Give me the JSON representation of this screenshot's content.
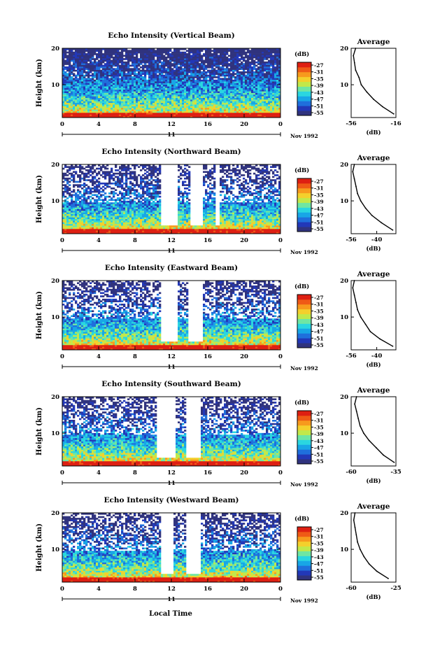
{
  "footer": {
    "xaxis_label": "Local Time"
  },
  "colorbar": {
    "unit_label": "(dB)",
    "tick_labels": [
      "-27",
      "-31",
      "-35",
      "-39",
      "-43",
      "-47",
      "-51",
      "-55"
    ],
    "colors": [
      "#30337e",
      "#2238b8",
      "#1f6fdc",
      "#18a6e6",
      "#2ad6e0",
      "#6fe6a3",
      "#c2e84a",
      "#f4d02c",
      "#f79a1d",
      "#ef5a16",
      "#de1f12"
    ]
  },
  "chart_data": [
    {
      "type": "heatmap",
      "title": "Echo Intensity (Vertical Beam)",
      "ylabel": "Height (km)",
      "ylim": [
        1,
        20
      ],
      "xlim": [
        0,
        24
      ],
      "x_ticks": [
        "0",
        "4",
        "8",
        "12",
        "16",
        "20",
        "0"
      ],
      "y_ticks": [
        "10",
        "20"
      ],
      "date_marker": "11",
      "date_label": "Nov 1992",
      "value_range_db": [
        -55,
        -27
      ],
      "gaps_hours": [],
      "profile": {
        "title": "Average",
        "xlabel": "(dB)",
        "x_ticks": [
          "-56",
          "-16"
        ],
        "xlim": [
          -56,
          -16
        ],
        "y_ticks": [
          "10",
          "20"
        ],
        "ylim": [
          1,
          20
        ],
        "heights_km": [
          2,
          4,
          6,
          8,
          10,
          12,
          14,
          16,
          18,
          20
        ],
        "values_db": [
          -18,
          -28,
          -36,
          -42,
          -47,
          -49,
          -52,
          -53,
          -54,
          -52
        ]
      }
    },
    {
      "type": "heatmap",
      "title": "Echo Intensity (Northward Beam)",
      "ylabel": "Height (km)",
      "ylim": [
        1,
        20
      ],
      "xlim": [
        0,
        24
      ],
      "x_ticks": [
        "0",
        "4",
        "8",
        "12",
        "16",
        "20",
        "0"
      ],
      "y_ticks": [
        "10",
        "20"
      ],
      "date_marker": "11",
      "date_label": "Nov 1992",
      "value_range_db": [
        -55,
        -27
      ],
      "gaps_hours": [
        [
          10.8,
          12.8
        ],
        [
          14.0,
          15.4
        ],
        [
          16.8,
          17.2
        ]
      ],
      "profile": {
        "title": "Average",
        "xlabel": "(dB)",
        "x_ticks": [
          "-56",
          "-40"
        ],
        "xlim": [
          -56,
          -28
        ],
        "y_ticks": [
          "10",
          "20"
        ],
        "ylim": [
          1,
          20
        ],
        "heights_km": [
          2,
          4,
          6,
          8,
          10,
          12,
          14,
          16,
          18,
          20
        ],
        "values_db": [
          -30,
          -37,
          -43,
          -47,
          -50,
          -52,
          -53,
          -54,
          -55,
          -54
        ]
      }
    },
    {
      "type": "heatmap",
      "title": "Echo Intensity (Eastward Beam)",
      "ylabel": "Height (km)",
      "ylim": [
        1,
        20
      ],
      "xlim": [
        0,
        24
      ],
      "x_ticks": [
        "0",
        "4",
        "8",
        "12",
        "16",
        "20",
        "0"
      ],
      "y_ticks": [
        "10",
        "20"
      ],
      "date_marker": "11",
      "date_label": "Nov 1992",
      "value_range_db": [
        -55,
        -27
      ],
      "gaps_hours": [
        [
          10.8,
          12.6
        ],
        [
          13.8,
          15.4
        ]
      ],
      "profile": {
        "title": "Average",
        "xlabel": "(dB)",
        "x_ticks": [
          "-56",
          "-40"
        ],
        "xlim": [
          -56,
          -28
        ],
        "y_ticks": [
          "10",
          "20"
        ],
        "ylim": [
          1,
          20
        ],
        "heights_km": [
          2,
          4,
          6,
          8,
          10,
          12,
          14,
          16,
          18,
          20
        ],
        "values_db": [
          -30,
          -38,
          -44,
          -47,
          -50,
          -52,
          -53,
          -54,
          -55,
          -54
        ]
      }
    },
    {
      "type": "heatmap",
      "title": "Echo Intensity (Southward Beam)",
      "ylabel": "Height (km)",
      "ylim": [
        1,
        20
      ],
      "xlim": [
        0,
        24
      ],
      "x_ticks": [
        "0",
        "4",
        "8",
        "12",
        "16",
        "20",
        "0"
      ],
      "y_ticks": [
        "10",
        "20"
      ],
      "date_marker": "11",
      "date_label": "Nov 1992",
      "value_range_db": [
        -55,
        -27
      ],
      "gaps_hours": [
        [
          10.4,
          12.4
        ],
        [
          13.6,
          15.2
        ]
      ],
      "profile": {
        "title": "Average",
        "xlabel": "(dB)",
        "x_ticks": [
          "-60",
          "-35"
        ],
        "xlim": [
          -60,
          -35
        ],
        "y_ticks": [
          "10",
          "20"
        ],
        "ylim": [
          1,
          20
        ],
        "heights_km": [
          2,
          4,
          6,
          8,
          10,
          12,
          14,
          16,
          18,
          20
        ],
        "values_db": [
          -36,
          -42,
          -46,
          -50,
          -53,
          -55,
          -56,
          -57,
          -58,
          -57
        ]
      }
    },
    {
      "type": "heatmap",
      "title": "Echo Intensity (Westward Beam)",
      "ylabel": "Height (km)",
      "ylim": [
        1,
        20
      ],
      "xlim": [
        0,
        24
      ],
      "x_ticks": [
        "0",
        "4",
        "8",
        "12",
        "16",
        "20",
        "0"
      ],
      "y_ticks": [
        "10",
        "20"
      ],
      "date_marker": "11",
      "date_label": "Nov 1992",
      "value_range_db": [
        -55,
        -27
      ],
      "gaps_hours": [
        [
          10.8,
          12.2
        ],
        [
          13.6,
          15.2
        ]
      ],
      "profile": {
        "title": "Average",
        "xlabel": "(dB)",
        "x_ticks": [
          "-60",
          "-25"
        ],
        "xlim": [
          -60,
          -25
        ],
        "y_ticks": [
          "10",
          "20"
        ],
        "ylim": [
          1,
          20
        ],
        "heights_km": [
          2,
          4,
          6,
          8,
          10,
          12,
          14,
          16,
          18,
          20
        ],
        "values_db": [
          -31,
          -40,
          -46,
          -50,
          -53,
          -55,
          -56,
          -57,
          -58,
          -57
        ]
      }
    }
  ]
}
